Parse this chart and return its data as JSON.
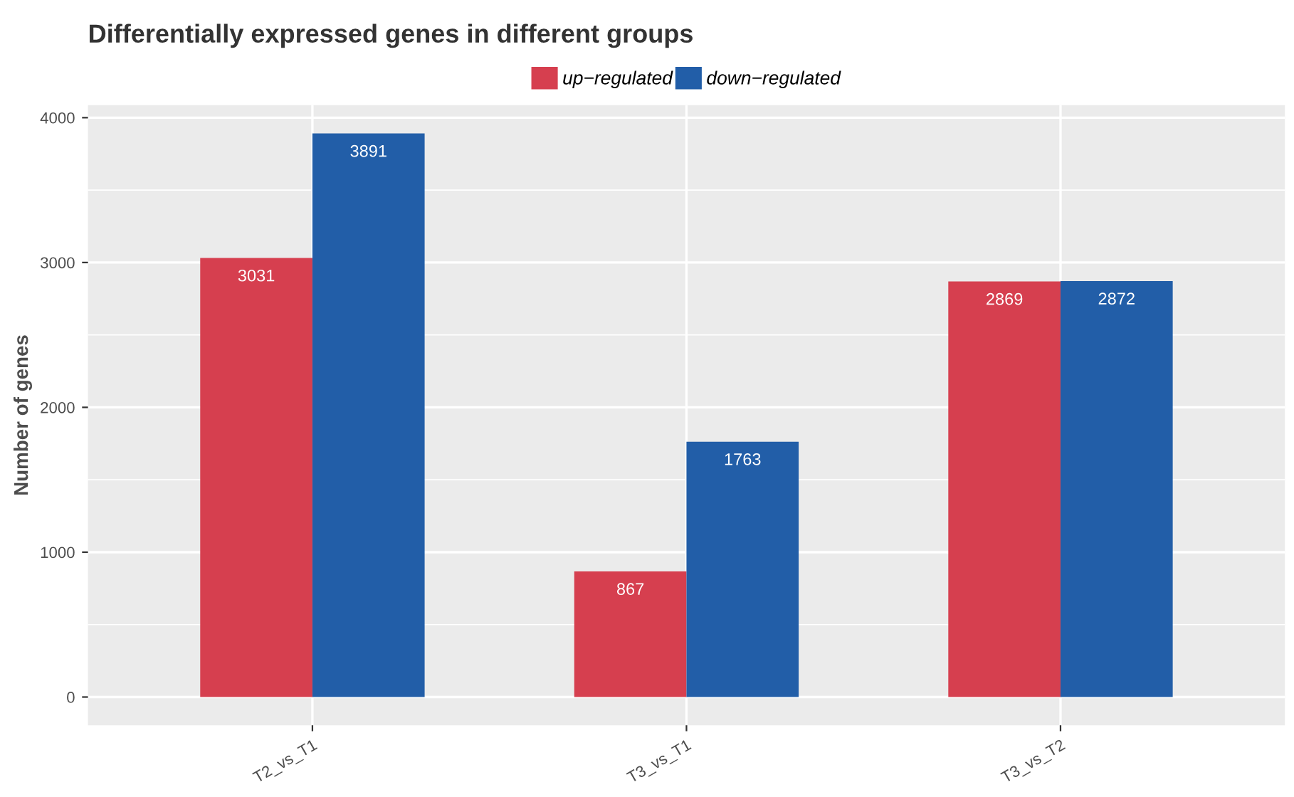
{
  "chart_data": {
    "type": "bar",
    "title": "Differentially expressed genes in different groups",
    "ylabel": "Number of genes",
    "categories": [
      "T2_vs_T1",
      "T3_vs_T1",
      "T3_vs_T2"
    ],
    "series": [
      {
        "name": "up−regulated",
        "color": "#d63f4f",
        "values": [
          3031,
          867,
          2869
        ]
      },
      {
        "name": "down−regulated",
        "color": "#225ea8",
        "values": [
          3891,
          1763,
          2872
        ]
      }
    ],
    "ylim": [
      -195,
      4086
    ],
    "yticks": [
      0,
      1000,
      2000,
      3000,
      4000
    ],
    "grid": true,
    "legend": "top",
    "data_labels": true
  }
}
